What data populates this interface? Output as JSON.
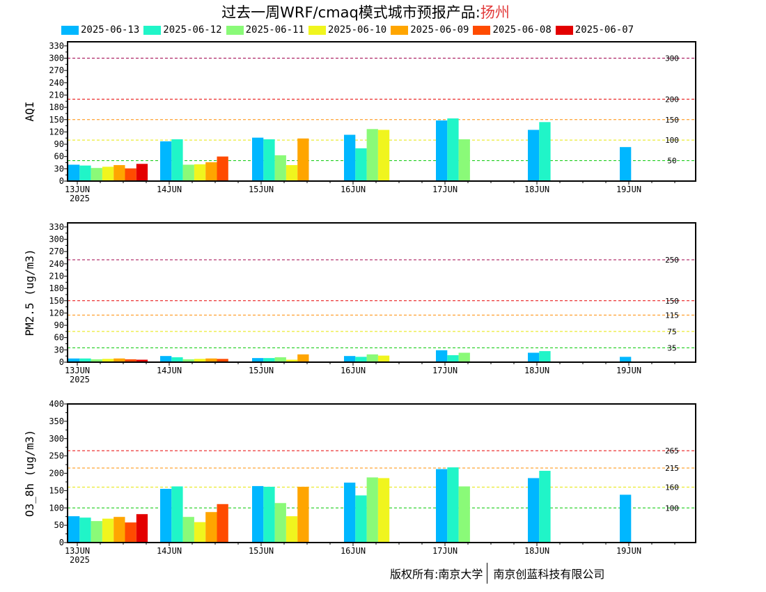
{
  "title": {
    "main": "过去一周WRF/cmaq模式城市预报产品:",
    "city": "扬州"
  },
  "colors": [
    "#00b7ff",
    "#20f5c8",
    "#8afa78",
    "#f0f51e",
    "#ffa500",
    "#ff4b00",
    "#e30000"
  ],
  "legend": [
    "2025-06-13",
    "2025-06-12",
    "2025-06-11",
    "2025-06-10",
    "2025-06-09",
    "2025-06-08",
    "2025-06-07"
  ],
  "copyright": {
    "left": "版权所有:南京大学",
    "right": "南京创蓝科技有限公司"
  },
  "chart_data": [
    {
      "type": "bar",
      "ylabel": "AQI",
      "ylim": [
        0,
        340
      ],
      "yticks": [
        0,
        30,
        60,
        90,
        120,
        150,
        180,
        210,
        240,
        270,
        300,
        330
      ],
      "categories": [
        "13JUN",
        "14JUN",
        "15JUN",
        "16JUN",
        "17JUN",
        "18JUN",
        "19JUN"
      ],
      "year_label": "2025",
      "thresholds": [
        {
          "value": 50,
          "color": "#00c800",
          "label": "50"
        },
        {
          "value": 100,
          "color": "#e6e600",
          "label": "100"
        },
        {
          "value": 150,
          "color": "#ff8c00",
          "label": "150"
        },
        {
          "value": 200,
          "color": "#e60000",
          "label": "200"
        },
        {
          "value": 300,
          "color": "#a0004b",
          "label": "300"
        }
      ],
      "series": [
        {
          "name": "2025-06-13",
          "values": [
            40,
            97,
            106,
            113,
            148,
            125,
            83
          ]
        },
        {
          "name": "2025-06-12",
          "values": [
            38,
            102,
            102,
            80,
            153,
            144,
            null
          ]
        },
        {
          "name": "2025-06-11",
          "values": [
            32,
            40,
            63,
            127,
            102,
            null,
            null
          ]
        },
        {
          "name": "2025-06-10",
          "values": [
            35,
            41,
            39,
            125,
            null,
            null,
            null
          ]
        },
        {
          "name": "2025-06-09",
          "values": [
            39,
            46,
            104,
            null,
            null,
            null,
            null
          ]
        },
        {
          "name": "2025-06-08",
          "values": [
            31,
            60,
            null,
            null,
            null,
            null,
            null
          ]
        },
        {
          "name": "2025-06-07",
          "values": [
            42,
            null,
            null,
            null,
            null,
            null,
            null
          ]
        }
      ]
    },
    {
      "type": "bar",
      "ylabel": "PM2.5 (ug/m3)",
      "ylim": [
        0,
        340
      ],
      "yticks": [
        0,
        30,
        60,
        90,
        120,
        150,
        180,
        210,
        240,
        270,
        300,
        330
      ],
      "categories": [
        "13JUN",
        "14JUN",
        "15JUN",
        "16JUN",
        "17JUN",
        "18JUN",
        "19JUN"
      ],
      "year_label": "2025",
      "thresholds": [
        {
          "value": 35,
          "color": "#00c800",
          "label": "35"
        },
        {
          "value": 75,
          "color": "#e6e600",
          "label": "75"
        },
        {
          "value": 115,
          "color": "#ff8c00",
          "label": "115"
        },
        {
          "value": 150,
          "color": "#e60000",
          "label": "150"
        },
        {
          "value": 250,
          "color": "#a0004b",
          "label": "250"
        }
      ],
      "series": [
        {
          "name": "2025-06-13",
          "values": [
            9,
            15,
            10,
            15,
            29,
            23,
            13
          ]
        },
        {
          "name": "2025-06-12",
          "values": [
            9,
            12,
            10,
            13,
            17,
            27,
            null
          ]
        },
        {
          "name": "2025-06-11",
          "values": [
            7,
            7,
            12,
            19,
            23,
            null,
            null
          ]
        },
        {
          "name": "2025-06-10",
          "values": [
            8,
            8,
            6,
            16,
            null,
            null,
            null
          ]
        },
        {
          "name": "2025-06-09",
          "values": [
            9,
            9,
            19,
            null,
            null,
            null,
            null
          ]
        },
        {
          "name": "2025-06-08",
          "values": [
            7,
            8,
            null,
            null,
            null,
            null,
            null
          ]
        },
        {
          "name": "2025-06-07",
          "values": [
            6,
            null,
            null,
            null,
            null,
            null,
            null
          ]
        }
      ]
    },
    {
      "type": "bar",
      "ylabel": "O3_8h (ug/m3)",
      "ylim": [
        0,
        400
      ],
      "yticks": [
        0,
        50,
        100,
        150,
        200,
        250,
        300,
        350,
        400
      ],
      "categories": [
        "13JUN",
        "14JUN",
        "15JUN",
        "16JUN",
        "17JUN",
        "18JUN",
        "19JUN"
      ],
      "year_label": "2025",
      "thresholds": [
        {
          "value": 100,
          "color": "#00c800",
          "label": "100"
        },
        {
          "value": 160,
          "color": "#e6e600",
          "label": "160"
        },
        {
          "value": 215,
          "color": "#ff8c00",
          "label": "215"
        },
        {
          "value": 265,
          "color": "#e60000",
          "label": "265"
        }
      ],
      "series": [
        {
          "name": "2025-06-13",
          "values": [
            76,
            155,
            163,
            173,
            212,
            186,
            138
          ]
        },
        {
          "name": "2025-06-12",
          "values": [
            72,
            162,
            161,
            136,
            217,
            207,
            null
          ]
        },
        {
          "name": "2025-06-11",
          "values": [
            62,
            74,
            114,
            188,
            162,
            null,
            null
          ]
        },
        {
          "name": "2025-06-10",
          "values": [
            69,
            59,
            76,
            186,
            null,
            null,
            null
          ]
        },
        {
          "name": "2025-06-09",
          "values": [
            74,
            88,
            161,
            null,
            null,
            null,
            null
          ]
        },
        {
          "name": "2025-06-08",
          "values": [
            58,
            111,
            null,
            null,
            null,
            null,
            null
          ]
        },
        {
          "name": "2025-06-07",
          "values": [
            82,
            null,
            null,
            null,
            null,
            null,
            null
          ]
        }
      ]
    }
  ]
}
